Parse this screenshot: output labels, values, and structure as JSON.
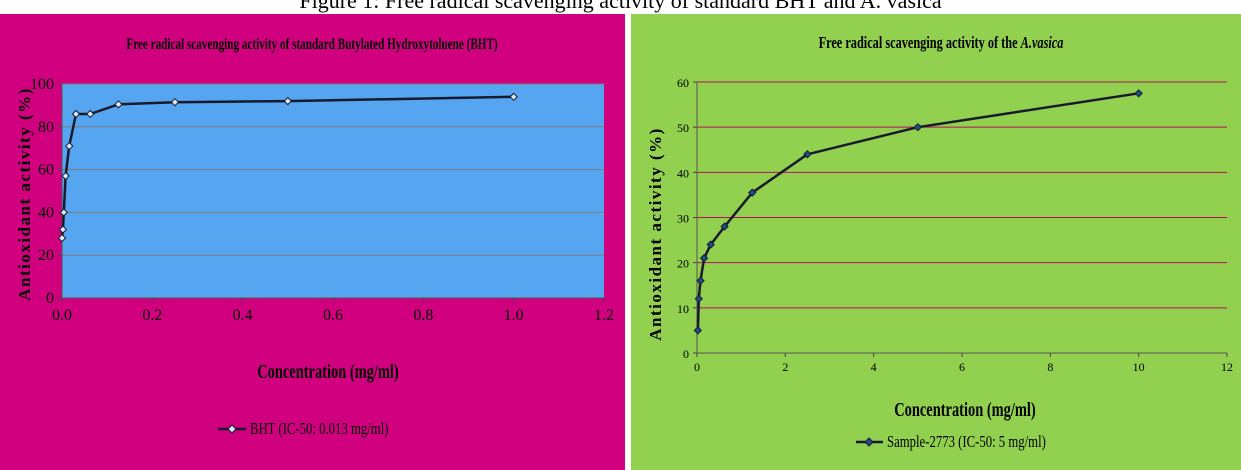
{
  "top_caption": "Figure 1: Free radical scavenging activity of standard BHT and A. vasica",
  "chart_data": [
    {
      "type": "line",
      "title": "Free radical scavenging activity of standard Butylated Hydroxytoluene (BHT)",
      "xlabel": "Concentration (mg/ml)",
      "ylabel": "Antioxidant activity (%)",
      "xlim": [
        0,
        1.2
      ],
      "ylim": [
        0,
        100
      ],
      "xticks": [
        "0.0",
        "0.2",
        "0.4",
        "0.6",
        "0.8",
        "1.0",
        "1.2"
      ],
      "yticks": [
        "0",
        "20",
        "40",
        "60",
        "80",
        "100"
      ],
      "grid": "horizontal",
      "legend_position": "bottom",
      "colors": {
        "panel": "#d1007f",
        "plot_area": "#55a5f0",
        "line": "#1a1a2e",
        "gridline": "#7d7d7d"
      },
      "series": [
        {
          "name": "BHT (IC-50: 0.013 mg/ml)",
          "x": [
            0.0,
            0.002,
            0.004,
            0.008,
            0.016,
            0.031,
            0.0625,
            0.125,
            0.25,
            0.5,
            1.0
          ],
          "y": [
            28,
            32,
            40,
            57,
            71,
            86,
            86,
            90.5,
            91.5,
            92,
            94
          ]
        }
      ]
    },
    {
      "type": "line",
      "title": "Free radical scavenging activity of the ",
      "title_italic": "A.vasica",
      "xlabel": "Concentration (mg/ml)",
      "ylabel": "Antioxidant activity (%)",
      "xlim": [
        0,
        12
      ],
      "ylim": [
        0,
        60
      ],
      "xticks": [
        "0",
        "2",
        "4",
        "6",
        "8",
        "10",
        "12"
      ],
      "yticks": [
        "0",
        "10",
        "20",
        "30",
        "40",
        "50",
        "60"
      ],
      "grid": "horizontal",
      "legend_position": "bottom",
      "colors": {
        "panel": "#92d050",
        "plot_area": "#92d050",
        "line": "#1a1a2e",
        "gridline": "#b5125a"
      },
      "series": [
        {
          "name": "Sample-2773 (IC-50: 5 mg/ml)",
          "x": [
            0.02,
            0.04,
            0.08,
            0.16,
            0.31,
            0.625,
            1.25,
            2.5,
            5,
            10
          ],
          "y": [
            5,
            12,
            16,
            21,
            24,
            28,
            35.5,
            44,
            50,
            57.5
          ]
        }
      ]
    }
  ]
}
